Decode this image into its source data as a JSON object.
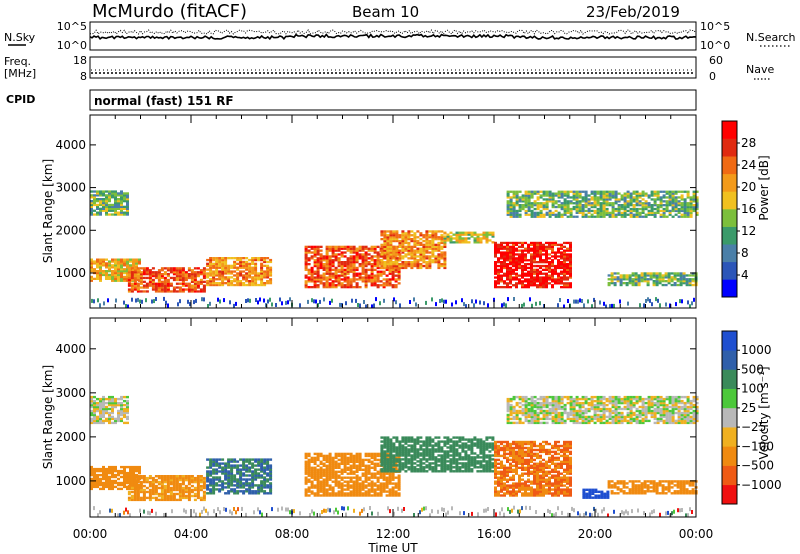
{
  "header": {
    "title": "McMurdo (fitACF)",
    "beam": "Beam 10",
    "date": "23/Feb/2019"
  },
  "noise_panel": {
    "left_label": "N.Sky",
    "right_label": "N.Search",
    "ticks_left": [
      "10^5",
      "10^0"
    ],
    "ticks_right": [
      "10^5",
      "10^0"
    ]
  },
  "freq_panel": {
    "left_label_1": "Freq.",
    "left_label_2": "[MHz]",
    "right_label": "Nave",
    "ticks_left": [
      "18",
      "8"
    ],
    "ticks_right": [
      "60",
      "0"
    ]
  },
  "cpid_panel": {
    "label": "CPID",
    "text": "normal (fast) 151 RF"
  },
  "colors": {
    "power": [
      "#0000ff",
      "#2b55b8",
      "#4a7fa8",
      "#3a9a6a",
      "#7cbf3c",
      "#f0c020",
      "#f39a1a",
      "#f06a14",
      "#e02a10",
      "#ff0000"
    ],
    "velocity": [
      "#1f4fd0",
      "#2f5faa",
      "#3a8a5a",
      "#4cc83a",
      "#b8b8b8",
      "#f0b020",
      "#f08a10",
      "#ef5a14",
      "#f01010"
    ]
  },
  "chart_data": [
    {
      "type": "heatmap",
      "name": "power",
      "ylabel": "Slant Range [km]",
      "yticks": [
        1000,
        2000,
        3000,
        4000
      ],
      "ylim": [
        180,
        4700
      ],
      "xlim": [
        "00:00",
        "24:00"
      ],
      "colorbar_label": "Power [dB]",
      "colorbar_ticks": [
        "28",
        "24",
        "20",
        "16",
        "12",
        "8",
        "4"
      ],
      "colorbar_range": [
        0,
        30
      ],
      "regions": [
        {
          "t": [
            0.0,
            1.5
          ],
          "r": [
            2350,
            2900
          ],
          "level": 12
        },
        {
          "t": [
            0.0,
            2.0
          ],
          "r": [
            800,
            1300
          ],
          "level": 18
        },
        {
          "t": [
            1.5,
            4.5
          ],
          "r": [
            550,
            1100
          ],
          "level": 24
        },
        {
          "t": [
            4.6,
            7.2
          ],
          "r": [
            700,
            1350
          ],
          "level": 20
        },
        {
          "t": [
            8.5,
            12.2
          ],
          "r": [
            650,
            1600
          ],
          "level": 24
        },
        {
          "t": [
            11.5,
            14.0
          ],
          "r": [
            1100,
            2000
          ],
          "level": 20
        },
        {
          "t": [
            14.0,
            16.0
          ],
          "r": [
            1700,
            1950
          ],
          "level": 16
        },
        {
          "t": [
            16.0,
            19.0
          ],
          "r": [
            650,
            1700
          ],
          "level": 28
        },
        {
          "t": [
            16.5,
            24.0
          ],
          "r": [
            2300,
            2900
          ],
          "level": 12
        },
        {
          "t": [
            20.5,
            24.0
          ],
          "r": [
            700,
            1000
          ],
          "level": 12
        }
      ]
    },
    {
      "type": "heatmap",
      "name": "velocity",
      "ylabel": "Slant Range [km]",
      "yticks": [
        1000,
        2000,
        3000,
        4000
      ],
      "ylim": [
        180,
        4700
      ],
      "xlabel": "Time UT",
      "xticks": [
        "00:00",
        "04:00",
        "08:00",
        "12:00",
        "16:00",
        "20:00",
        "00:00"
      ],
      "colorbar_label": "Velocity [m s⁻¹]",
      "colorbar_ticks": [
        "1000",
        "500",
        "100",
        "25",
        "−25",
        "−100",
        "−500",
        "−1000"
      ],
      "regions": [
        {
          "t": [
            0.0,
            1.5
          ],
          "r": [
            2300,
            2900
          ],
          "v": 0
        },
        {
          "t": [
            0.0,
            2.0
          ],
          "r": [
            800,
            1300
          ],
          "v": -150
        },
        {
          "t": [
            1.5,
            4.5
          ],
          "r": [
            550,
            1100
          ],
          "v": -100
        },
        {
          "t": [
            4.6,
            7.2
          ],
          "r": [
            700,
            1500
          ],
          "v": 300
        },
        {
          "t": [
            8.5,
            12.2
          ],
          "r": [
            650,
            1600
          ],
          "v": -150
        },
        {
          "t": [
            11.5,
            16.0
          ],
          "r": [
            1200,
            2000
          ],
          "v": 150
        },
        {
          "t": [
            16.0,
            19.0
          ],
          "r": [
            650,
            1900
          ],
          "v": -300
        },
        {
          "t": [
            16.5,
            24.0
          ],
          "r": [
            2300,
            2900
          ],
          "v": 0
        },
        {
          "t": [
            19.5,
            20.5
          ],
          "r": [
            600,
            800
          ],
          "v": 800
        },
        {
          "t": [
            20.5,
            24.0
          ],
          "r": [
            700,
            1000
          ],
          "v": -150
        }
      ]
    }
  ]
}
